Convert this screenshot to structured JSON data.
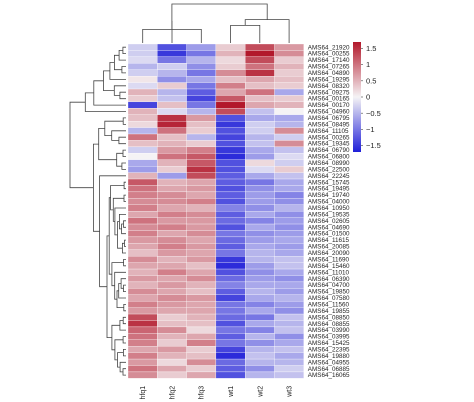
{
  "chart_data": {
    "type": "heatmap",
    "columns": [
      "hfq1",
      "hfq2",
      "hfq3",
      "wt1",
      "wt2",
      "wt3"
    ],
    "rows": [
      "AMS64_21920",
      "AMS64_00255",
      "AMS64_17140",
      "AMS64_07265",
      "AMS64_04890",
      "AMS64_19295",
      "AMS64_08320",
      "AMS64_09275",
      "AMS64_00165",
      "AMS64_00170",
      "AMS64_04960",
      "AMS64_06795",
      "AMS64_08495",
      "AMS64_11105",
      "AMS64_00265",
      "AMS64_19345",
      "AMS64_06790",
      "AMS64_06800",
      "AMS64_08990",
      "AMS64_22500",
      "AMS64_22245",
      "AMS64_15745",
      "AMS64_19495",
      "AMS64_19740",
      "AMS64_04000",
      "AMS64_10950",
      "AMS64_19535",
      "AMS64_02605",
      "AMS64_04690",
      "AMS64_01500",
      "AMS64_11615",
      "AMS64_20085",
      "AMS64_20090",
      "AMS64_11690",
      "AMS64_15460",
      "AMS64_11010",
      "AMS64_06390",
      "AMS64_04700",
      "AMS64_19850",
      "AMS64_07580",
      "AMS64_11560",
      "AMS64_19855",
      "AMS64_08850",
      "AMS64_08855",
      "AMS64_03990",
      "AMS64_03995",
      "AMS64_15425",
      "AMS64_22395",
      "AMS64_19880",
      "AMS64_04955",
      "AMS64_06885",
      "AMS64_16065"
    ],
    "values": [
      [
        -0.3,
        -1.3,
        -0.7,
        0.3,
        1.3,
        0.7
      ],
      [
        -0.3,
        -1.5,
        -1.0,
        0.5,
        1.7,
        0.8
      ],
      [
        -0.2,
        -1.0,
        -0.5,
        0.2,
        1.3,
        0.3
      ],
      [
        -0.5,
        -0.3,
        -0.8,
        0.3,
        1.0,
        0.5
      ],
      [
        -0.3,
        -0.5,
        -1.0,
        0.8,
        1.5,
        0.3
      ],
      [
        0.1,
        -0.8,
        -0.6,
        0.4,
        0.6,
        0.4
      ],
      [
        -0.2,
        0.3,
        -1.0,
        0.9,
        0.4,
        0.3
      ],
      [
        0.5,
        -0.5,
        -1.2,
        0.6,
        1.0,
        -0.6
      ],
      [
        0.3,
        -0.4,
        -1.4,
        1.2,
        0.4,
        0.3
      ],
      [
        -1.4,
        0.4,
        -1.0,
        1.7,
        0.6,
        0.5
      ],
      [
        0.5,
        -0.2,
        -0.5,
        1.3,
        -0.4,
        0.0
      ],
      [
        0.4,
        1.5,
        0.7,
        -1.3,
        -0.6,
        -0.6
      ],
      [
        0.2,
        1.6,
        0.4,
        -1.5,
        -0.3,
        -0.5
      ],
      [
        -0.5,
        1.0,
        0.3,
        -1.3,
        -0.3,
        0.8
      ],
      [
        1.0,
        0.4,
        -0.5,
        -1.4,
        -0.5,
        -0.3
      ],
      [
        0.4,
        0.5,
        0.3,
        -1.3,
        -0.4,
        0.8
      ],
      [
        -0.3,
        0.7,
        0.9,
        -1.5,
        -0.6,
        -0.4
      ],
      [
        0.0,
        1.0,
        1.2,
        -1.6,
        -0.7,
        -0.2
      ],
      [
        -0.6,
        0.5,
        1.2,
        -1.3,
        0.2,
        -0.3
      ],
      [
        -0.7,
        0.3,
        1.5,
        -1.3,
        -0.2,
        0.3
      ],
      [
        0.5,
        -0.7,
        1.3,
        -1.2,
        -0.6,
        -0.4
      ],
      [
        1.2,
        0.5,
        0.6,
        -1.2,
        -1.0,
        -0.6
      ],
      [
        1.0,
        0.6,
        0.7,
        -1.3,
        -0.8,
        -0.6
      ],
      [
        0.9,
        0.8,
        0.6,
        -1.2,
        -0.7,
        -0.9
      ],
      [
        0.8,
        0.8,
        0.9,
        -1.3,
        -0.7,
        -0.8
      ],
      [
        0.9,
        0.6,
        0.5,
        -0.9,
        -0.8,
        -0.5
      ],
      [
        0.6,
        0.9,
        0.8,
        -1.2,
        -0.6,
        -0.8
      ],
      [
        1.0,
        0.7,
        0.7,
        -1.1,
        -0.9,
        -0.7
      ],
      [
        0.8,
        0.9,
        0.7,
        -1.3,
        -0.6,
        -0.8
      ],
      [
        0.9,
        0.6,
        0.8,
        -1.0,
        -0.8,
        -0.7
      ],
      [
        0.7,
        0.8,
        0.6,
        -1.1,
        -0.7,
        -0.6
      ],
      [
        0.6,
        0.9,
        0.7,
        -1.2,
        -0.6,
        -0.7
      ],
      [
        0.4,
        0.7,
        0.6,
        -1.0,
        -0.5,
        -0.6
      ],
      [
        0.8,
        0.5,
        0.7,
        -1.5,
        -0.5,
        -0.4
      ],
      [
        0.6,
        0.6,
        0.4,
        -1.6,
        -0.7,
        -0.4
      ],
      [
        0.5,
        0.9,
        0.6,
        -1.3,
        -0.8,
        -0.6
      ],
      [
        0.7,
        0.6,
        0.8,
        -1.1,
        -0.7,
        -0.8
      ],
      [
        0.5,
        0.7,
        0.5,
        -0.9,
        -0.6,
        -0.6
      ],
      [
        0.8,
        0.6,
        0.4,
        -1.2,
        -0.5,
        -0.7
      ],
      [
        0.6,
        0.8,
        0.7,
        -1.4,
        -0.6,
        -0.5
      ],
      [
        0.9,
        0.7,
        0.6,
        -1.0,
        -0.9,
        -0.7
      ],
      [
        0.7,
        0.6,
        0.6,
        -1.0,
        -0.6,
        -0.8
      ],
      [
        1.3,
        0.3,
        0.5,
        -1.1,
        -1.0,
        -0.4
      ],
      [
        1.5,
        0.4,
        0.4,
        -1.3,
        -0.6,
        -0.5
      ],
      [
        1.1,
        0.8,
        0.2,
        -1.0,
        -0.9,
        -0.4
      ],
      [
        1.0,
        0.5,
        0.6,
        -1.2,
        -0.5,
        -0.8
      ],
      [
        0.9,
        0.3,
        0.9,
        -1.0,
        -0.8,
        -0.6
      ],
      [
        0.6,
        0.7,
        0.3,
        -1.4,
        -0.5,
        -0.4
      ],
      [
        0.9,
        0.5,
        0.4,
        -1.6,
        -0.4,
        -0.6
      ],
      [
        0.7,
        0.2,
        0.8,
        -1.1,
        -0.5,
        -0.5
      ],
      [
        1.0,
        0.6,
        0.3,
        -1.2,
        -0.8,
        -0.3
      ],
      [
        0.8,
        0.3,
        0.6,
        -1.3,
        -0.5,
        -0.4
      ]
    ],
    "color_scale": {
      "min": -1.7,
      "mid": 0,
      "max": 1.7,
      "low_color": "#1f1fd8",
      "mid_color": "#f5f3f5",
      "high_color": "#b2182b",
      "legend_ticks": [
        1.5,
        1,
        0.5,
        0,
        -0.5,
        -1,
        -1.5
      ],
      "legend_tick_labels": [
        "1.5",
        "1",
        "0.5",
        "0",
        "−0.5",
        "−1",
        "−1.5"
      ]
    },
    "column_clusters": {
      "merges": [
        [
          0,
          2,
          0.35
        ],
        [
          1,
          6,
          0.55
        ],
        [
          3,
          4,
          0.45
        ],
        [
          5,
          8,
          0.6
        ],
        [
          7,
          9,
          1.0
        ]
      ]
    },
    "title": "",
    "xlabel": "",
    "ylabel": ""
  }
}
